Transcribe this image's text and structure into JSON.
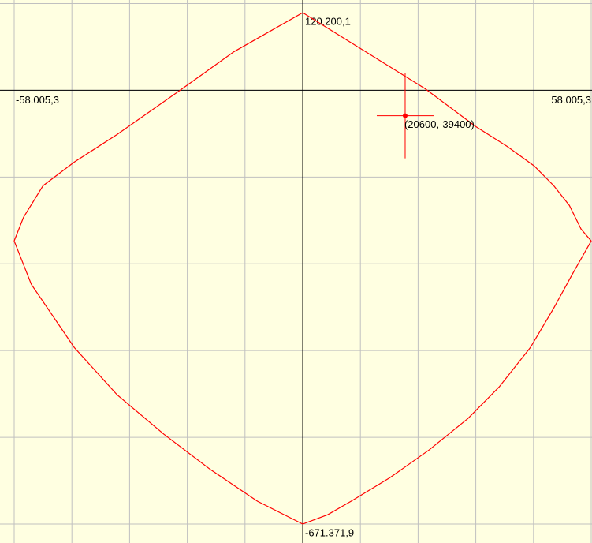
{
  "chart_data": {
    "type": "line",
    "x": [
      0,
      24613,
      34803,
      41074,
      46561,
      50480,
      53615,
      55967,
      58005.3,
      54399,
      50480,
      45777,
      39506,
      33235,
      25397,
      17558,
      9720,
      5017,
      0,
      -9093,
      -18499,
      -27905,
      -37311,
      -45934,
      -54556,
      -58005.3,
      -56123,
      -52204,
      -45934,
      -37311,
      -25553,
      -13796,
      0
    ],
    "series": [
      {
        "color": "#ff0000",
        "values": [
          120200.1,
          2442,
          -56166,
          -86691,
          -117216,
          -147741,
          -178266,
          -214896,
          -233211,
          -282051,
          -336996,
          -398046,
          -459096,
          -507936,
          -556776,
          -599511,
          -636141,
          -656898,
          -671371.9,
          -636141,
          -587301,
          -532356,
          -471306,
          -398046,
          -300366,
          -233211,
          -196581,
          -147741,
          -111111,
          -68376,
          -4884,
          59829,
          120200.1
        ]
      }
    ],
    "xlim": [
      -58005.3,
      58005.3
    ],
    "ylim": [
      -671371.9,
      120200.1
    ],
    "xticks": [
      {
        "value": -58005.3,
        "label": "-58.005,3"
      },
      {
        "value": 58005.3,
        "label": "58.005,3"
      }
    ],
    "yticks": [
      {
        "value": 120200.1,
        "label": "120.200,1"
      },
      {
        "value": -671371.9,
        "label": "-671.371,9"
      }
    ],
    "grid": true,
    "background": "#ffffe1",
    "annotations": [
      {
        "x": 20600,
        "y": -39400,
        "label": "(20600,-39400)",
        "color": "#ff0000"
      }
    ]
  }
}
